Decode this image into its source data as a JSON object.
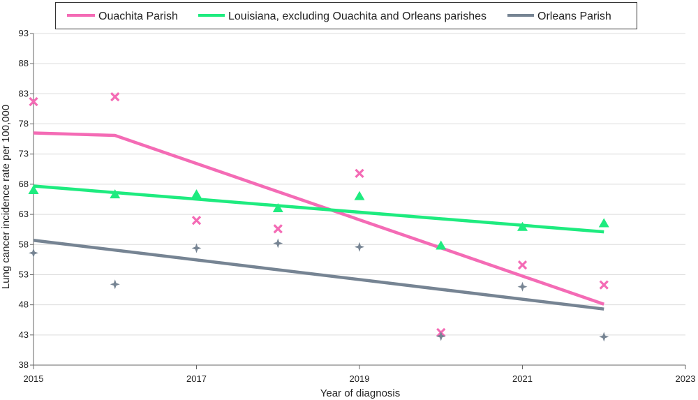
{
  "chart_data": {
    "type": "scatter",
    "xlabel": "Year of diagnosis",
    "ylabel": "Lung cancer incidence rate per 100,000",
    "xlim": [
      2015,
      2023
    ],
    "ylim": [
      38,
      93
    ],
    "xticks": [
      "2015",
      "2017",
      "2019",
      "2021",
      "2023"
    ],
    "yticks": [
      "38",
      "43",
      "48",
      "53",
      "58",
      "63",
      "68",
      "73",
      "78",
      "83",
      "88",
      "93"
    ],
    "grid": "horizontal",
    "legend_position": "top",
    "series": [
      {
        "name": "Ouachita Parish",
        "color": "#F46BB5",
        "marker": "x-mark",
        "points": [
          {
            "x": 2015,
            "y": 81.7
          },
          {
            "x": 2016,
            "y": 82.5
          },
          {
            "x": 2017,
            "y": 62.0
          },
          {
            "x": 2018,
            "y": 60.6
          },
          {
            "x": 2019,
            "y": 69.8
          },
          {
            "x": 2020,
            "y": 43.4
          },
          {
            "x": 2021,
            "y": 54.6
          },
          {
            "x": 2022,
            "y": 51.3
          }
        ],
        "trend": [
          {
            "x": 2015,
            "y": 76.5
          },
          {
            "x": 2016,
            "y": 76.1
          },
          {
            "x": 2022,
            "y": 48.1
          }
        ]
      },
      {
        "name": "Louisiana, excluding Ouachita and Orleans parishes",
        "color": "#1EEB7F",
        "marker": "triangle",
        "points": [
          {
            "x": 2015,
            "y": 67.0
          },
          {
            "x": 2016,
            "y": 66.3
          },
          {
            "x": 2017,
            "y": 66.3
          },
          {
            "x": 2018,
            "y": 64.0
          },
          {
            "x": 2019,
            "y": 66.0
          },
          {
            "x": 2020,
            "y": 57.8
          },
          {
            "x": 2021,
            "y": 60.9
          },
          {
            "x": 2022,
            "y": 61.5
          }
        ],
        "trend": [
          {
            "x": 2015,
            "y": 67.7
          },
          {
            "x": 2022,
            "y": 60.1
          }
        ]
      },
      {
        "name": "Orleans Parish",
        "color": "#768493",
        "marker": "four-point-star",
        "points": [
          {
            "x": 2015,
            "y": 56.6
          },
          {
            "x": 2016,
            "y": 51.4
          },
          {
            "x": 2017,
            "y": 57.4
          },
          {
            "x": 2018,
            "y": 58.2
          },
          {
            "x": 2019,
            "y": 57.6
          },
          {
            "x": 2020,
            "y": 42.8
          },
          {
            "x": 2021,
            "y": 51.0
          },
          {
            "x": 2022,
            "y": 42.7
          }
        ],
        "trend": [
          {
            "x": 2015,
            "y": 58.7
          },
          {
            "x": 2022,
            "y": 47.3
          }
        ]
      }
    ]
  }
}
